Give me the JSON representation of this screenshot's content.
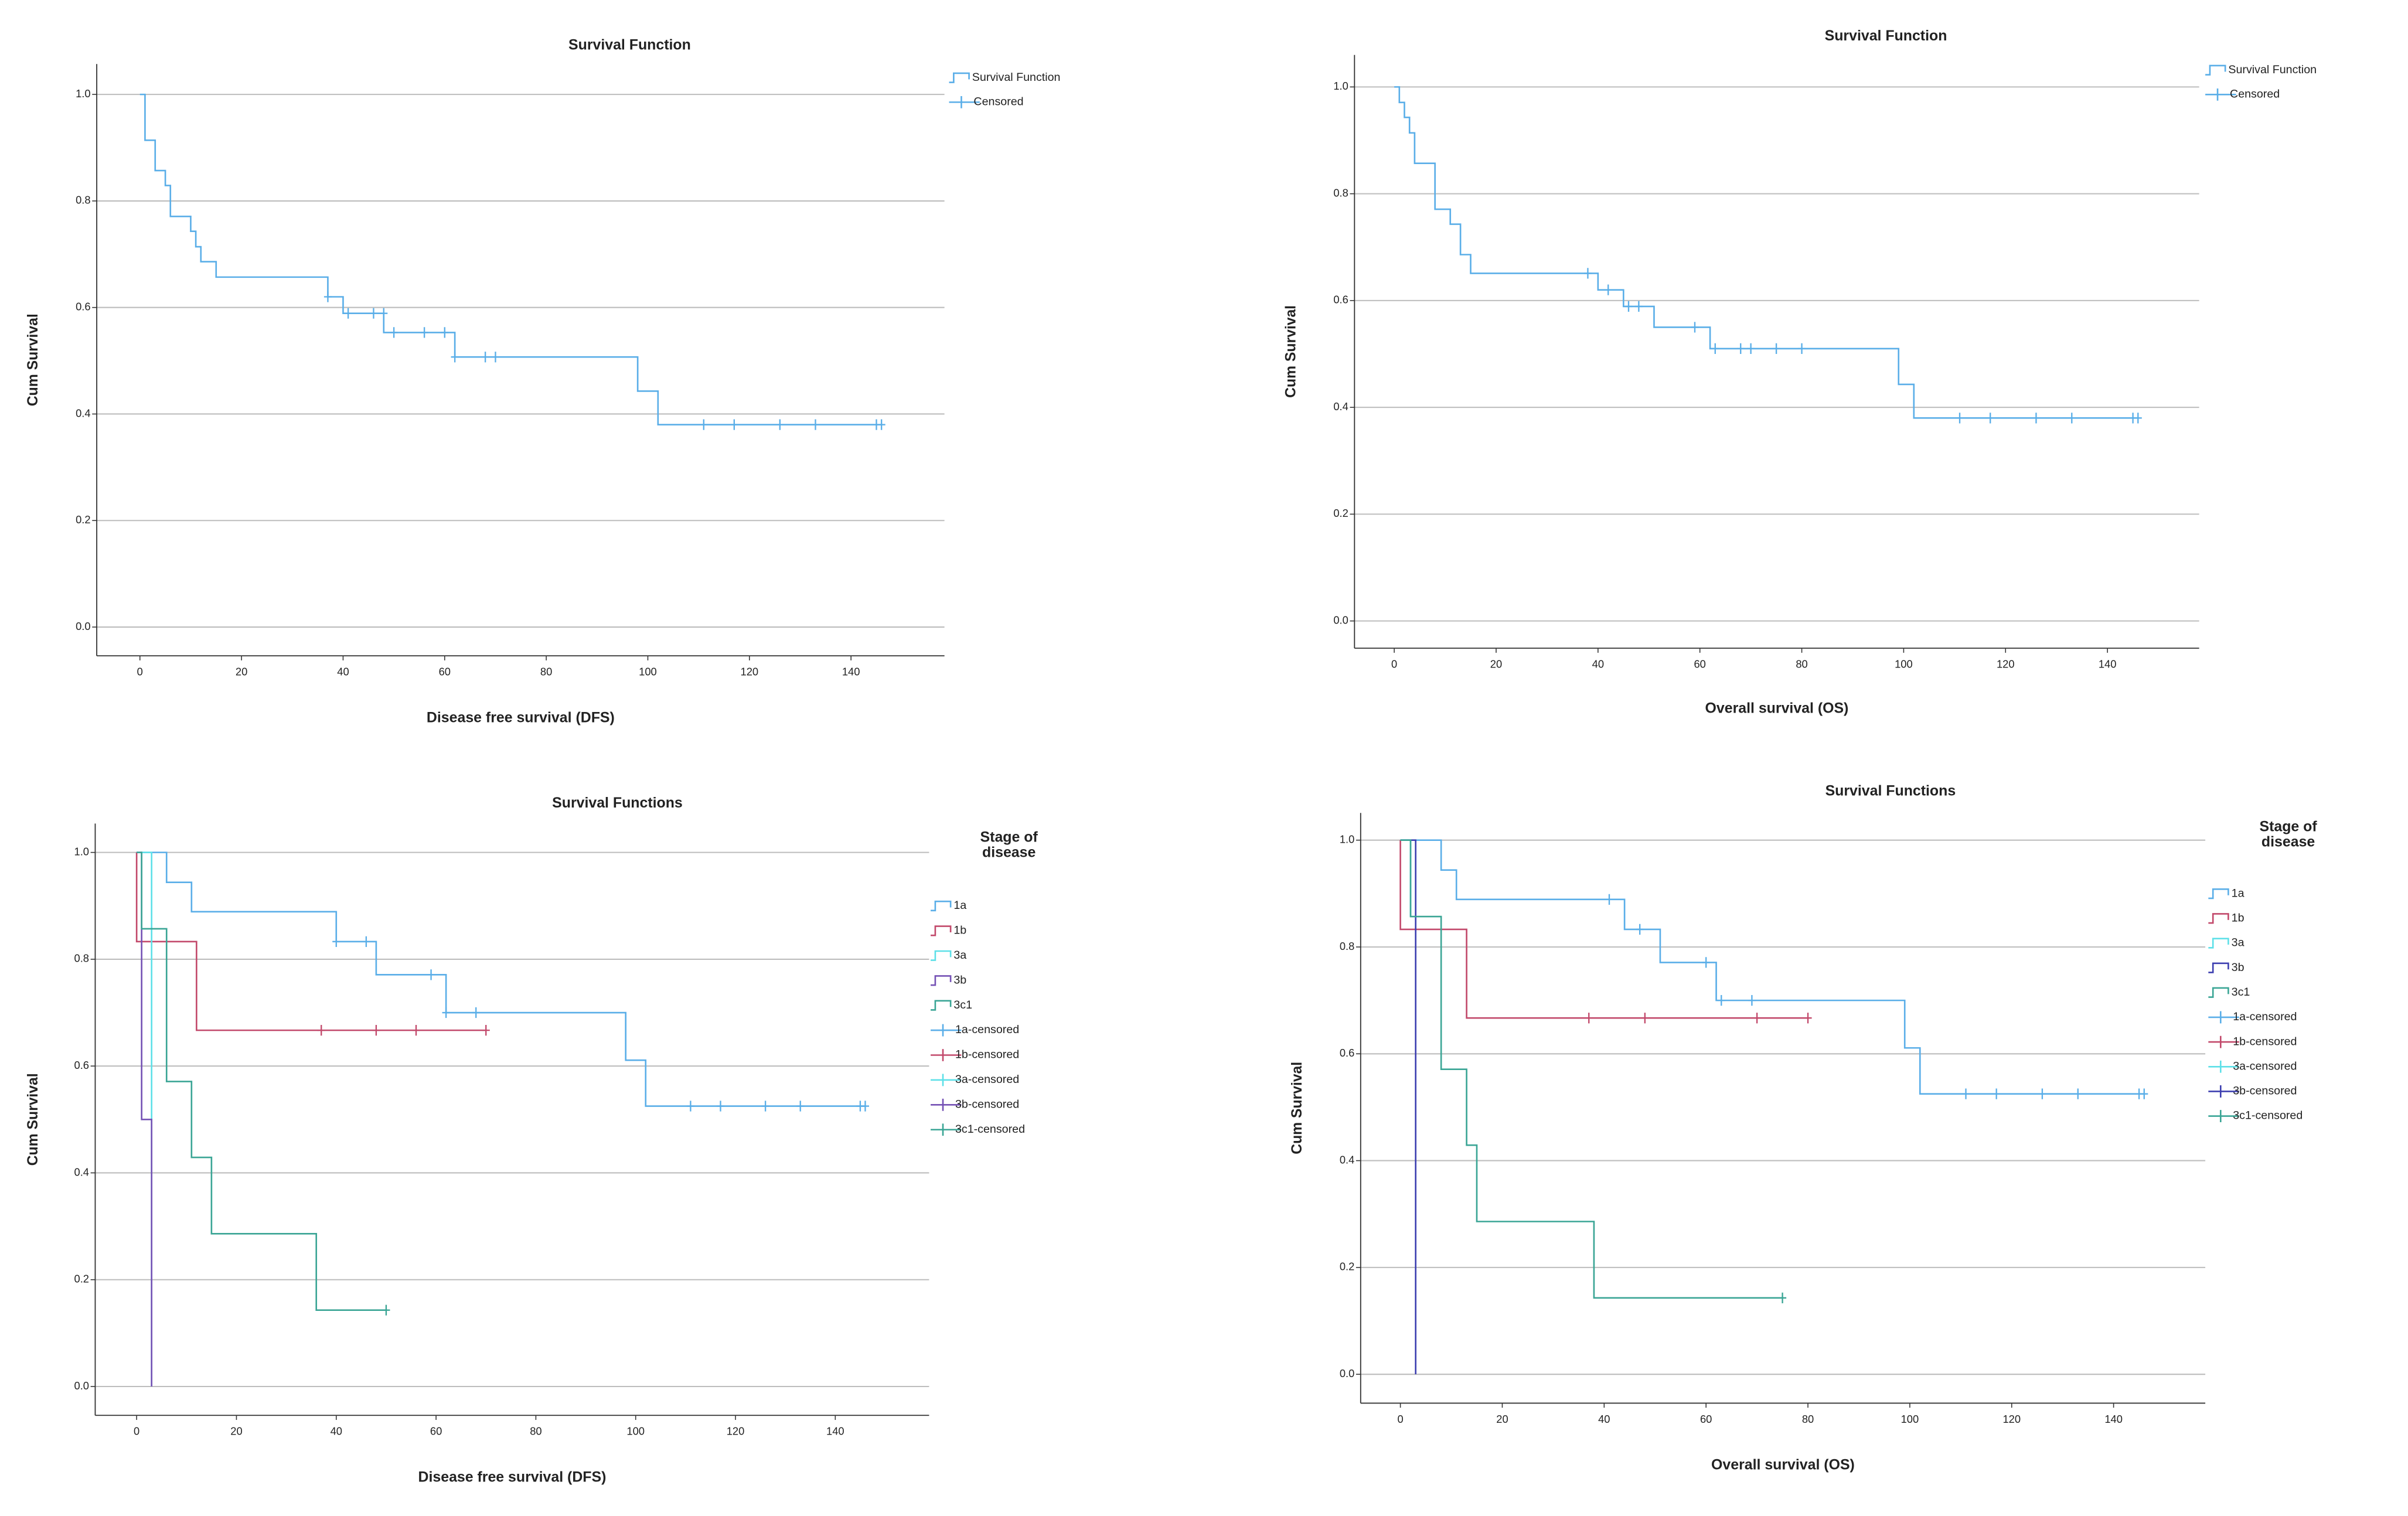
{
  "chart_data": [
    {
      "type": "step",
      "title": "Survival Function",
      "x_label": "Disease free survival (DFS)",
      "y_label": "Cum Survival",
      "xlim": [
        -8.5,
        158.4
      ],
      "ylim": [
        -0.054,
        1.057
      ],
      "xticks": [
        0,
        20,
        40,
        60,
        80,
        100,
        120,
        140
      ],
      "yticks": [
        {
          "value": 0,
          "label": "0.0"
        },
        0.2,
        0.4,
        0.6,
        0.8,
        {
          "value": 1,
          "label": "1.0"
        }
      ],
      "grid": true,
      "series": [
        {
          "name": "Survival Function",
          "type": "step",
          "color": "#5aaee8",
          "x": [
            0,
            1,
            3,
            5,
            6,
            10,
            11,
            12,
            15,
            37,
            40,
            48,
            62,
            98,
            102,
            146
          ],
          "values": [
            1,
            0.914,
            0.857,
            0.829,
            0.771,
            0.743,
            0.714,
            0.686,
            0.657,
            0.62,
            0.589,
            0.553,
            0.507,
            0.443,
            0.38,
            0.38
          ]
        },
        {
          "name": "Censored",
          "type": "censor",
          "color": "#5aaee8",
          "x": [
            37,
            41,
            46,
            48,
            50,
            56,
            60,
            62,
            68,
            70,
            111,
            117,
            126,
            133,
            145,
            146
          ],
          "values": [
            0.62,
            0.589,
            0.589,
            0.589,
            0.553,
            0.553,
            0.553,
            0.507,
            0.507,
            0.507,
            0.38,
            0.38,
            0.38,
            0.38,
            0.38,
            0.38
          ]
        }
      ]
    },
    {
      "type": "step",
      "title": "Survival Function",
      "x_label": "Overall survival (OS)",
      "y_label": "Cum Survival",
      "xlim": [
        -7.8,
        158
      ],
      "ylim": [
        -0.051,
        1.06
      ],
      "xticks": [
        0,
        20,
        40,
        60,
        80,
        100,
        120,
        140
      ],
      "yticks": [
        {
          "value": 0,
          "label": "0.0"
        },
        0.2,
        0.4,
        0.6,
        0.8,
        {
          "value": 1,
          "label": "1.0"
        }
      ],
      "grid": true,
      "series": [
        {
          "name": "Survival Function",
          "type": "step",
          "color": "#5aaee8",
          "x": [
            0,
            1,
            2,
            3,
            4,
            8,
            11,
            13,
            15,
            40,
            45,
            51,
            62,
            99,
            102,
            146
          ],
          "values": [
            1,
            0.971,
            0.943,
            0.914,
            0.857,
            0.771,
            0.743,
            0.686,
            0.651,
            0.62,
            0.589,
            0.55,
            0.51,
            0.443,
            0.38,
            0.38
          ]
        },
        {
          "name": "Censored",
          "type": "censor",
          "color": "#5aaee8",
          "x": [
            38,
            42,
            46,
            48,
            59,
            63,
            68,
            70,
            75,
            80,
            111,
            117,
            126,
            133,
            145,
            146
          ],
          "values": [
            0.651,
            0.62,
            0.589,
            0.589,
            0.55,
            0.51,
            0.51,
            0.51,
            0.51,
            0.51,
            0.38,
            0.38,
            0.38,
            0.38,
            0.38,
            0.38
          ]
        }
      ]
    },
    {
      "type": "step",
      "title": "Survival Functions",
      "x_label": "Disease free survival (DFS)",
      "y_label": "Cum Survival",
      "legend_title": "Stage of disease",
      "xlim": [
        -8.3,
        158.8
      ],
      "ylim": [
        -0.054,
        1.054
      ],
      "xticks": [
        0,
        20,
        40,
        60,
        80,
        100,
        120,
        140
      ],
      "yticks": [
        {
          "value": 0,
          "label": "0.0"
        },
        0.2,
        0.4,
        0.6,
        0.8,
        {
          "value": 1,
          "label": "1.0"
        }
      ],
      "grid": true,
      "series": [
        {
          "name": "1a",
          "type": "step",
          "color": "#5aaee8",
          "x": [
            0,
            6,
            11,
            40,
            48,
            62,
            98,
            102,
            146
          ],
          "values": [
            1,
            0.944,
            0.889,
            0.833,
            0.771,
            0.7,
            0.611,
            0.525,
            0.525
          ]
        },
        {
          "name": "1b",
          "type": "step",
          "color": "#c2496b",
          "x": [
            0,
            0,
            12,
            70
          ],
          "values": [
            1,
            0.833,
            0.667,
            0.667
          ]
        },
        {
          "name": "3a",
          "type": "step",
          "color": "#5ee0e8",
          "x": [
            0,
            3
          ],
          "values": [
            1,
            0
          ]
        },
        {
          "name": "3b",
          "type": "step",
          "color": "#7552b5",
          "x": [
            0,
            1,
            3
          ],
          "values": [
            1,
            0.5,
            0
          ]
        },
        {
          "name": "3c1",
          "type": "step",
          "color": "#3aa595",
          "x": [
            0,
            1,
            6,
            11,
            15,
            36,
            50
          ],
          "values": [
            1,
            0.857,
            0.571,
            0.429,
            0.286,
            0.143,
            0.143
          ]
        },
        {
          "name": "1a-censored",
          "type": "censor",
          "color": "#5aaee8",
          "x": [
            40,
            46,
            59,
            62,
            68,
            111,
            117,
            126,
            133,
            145,
            146
          ],
          "values": [
            0.833,
            0.833,
            0.771,
            0.7,
            0.7,
            0.525,
            0.525,
            0.525,
            0.525,
            0.525,
            0.525
          ]
        },
        {
          "name": "1b-censored",
          "type": "censor",
          "color": "#c2496b",
          "x": [
            37,
            48,
            56,
            70
          ],
          "values": [
            0.667,
            0.667,
            0.667,
            0.667
          ]
        },
        {
          "name": "3a-censored",
          "type": "censor",
          "color": "#5ee0e8",
          "x": [],
          "values": []
        },
        {
          "name": "3b-censored",
          "type": "censor",
          "color": "#7552b5",
          "x": [],
          "values": []
        },
        {
          "name": "3c1-censored",
          "type": "censor",
          "color": "#3aa595",
          "x": [
            50
          ],
          "values": [
            0.143
          ]
        }
      ]
    },
    {
      "type": "step",
      "title": "Survival Functions",
      "x_label": "Overall survival (OS)",
      "y_label": "Cum Survival",
      "legend_title": "Stage of disease",
      "xlim": [
        -7.8,
        158
      ],
      "ylim": [
        -0.054,
        1.051
      ],
      "xticks": [
        0,
        20,
        40,
        60,
        80,
        100,
        120,
        140
      ],
      "yticks": [
        {
          "value": 0,
          "label": "0.0"
        },
        0.2,
        0.4,
        0.6,
        0.8,
        {
          "value": 1,
          "label": "1.0"
        }
      ],
      "grid": true,
      "series": [
        {
          "name": "1a",
          "type": "step",
          "color": "#5aaee8",
          "x": [
            0,
            8,
            11,
            44,
            51,
            62,
            99,
            102,
            146
          ],
          "values": [
            1,
            0.944,
            0.889,
            0.833,
            0.771,
            0.7,
            0.611,
            0.525,
            0.525
          ]
        },
        {
          "name": "1b",
          "type": "step",
          "color": "#c2496b",
          "x": [
            0,
            0,
            13,
            80
          ],
          "values": [
            1,
            0.833,
            0.667,
            0.667
          ]
        },
        {
          "name": "3a",
          "type": "step",
          "color": "#5ee0e8",
          "x": [
            0,
            2
          ],
          "values": [
            1,
            0.857
          ]
        },
        {
          "name": "3b",
          "type": "step",
          "color": "#3d3fb0",
          "x": [
            0,
            3
          ],
          "values": [
            1,
            0
          ]
        },
        {
          "name": "3c1",
          "type": "step",
          "color": "#3aa595",
          "x": [
            0,
            2,
            8,
            13,
            15,
            38,
            75
          ],
          "values": [
            1,
            0.857,
            0.571,
            0.429,
            0.286,
            0.143,
            0.143
          ]
        },
        {
          "name": "1a-censored",
          "type": "censor",
          "color": "#5aaee8",
          "x": [
            41,
            47,
            60,
            63,
            69,
            111,
            117,
            126,
            133,
            145,
            146
          ],
          "values": [
            0.889,
            0.833,
            0.771,
            0.7,
            0.7,
            0.525,
            0.525,
            0.525,
            0.525,
            0.525,
            0.525
          ]
        },
        {
          "name": "1b-censored",
          "type": "censor",
          "color": "#c2496b",
          "x": [
            37,
            48,
            70,
            80
          ],
          "values": [
            0.667,
            0.667,
            0.667,
            0.667
          ]
        },
        {
          "name": "3a-censored",
          "type": "censor",
          "color": "#5ee0e8",
          "x": [],
          "values": []
        },
        {
          "name": "3b-censored",
          "type": "censor",
          "color": "#3d3fb0",
          "x": [],
          "values": []
        },
        {
          "name": "3c1-censored",
          "type": "censor",
          "color": "#3aa595",
          "x": [
            75
          ],
          "values": [
            0.143
          ]
        }
      ]
    }
  ]
}
